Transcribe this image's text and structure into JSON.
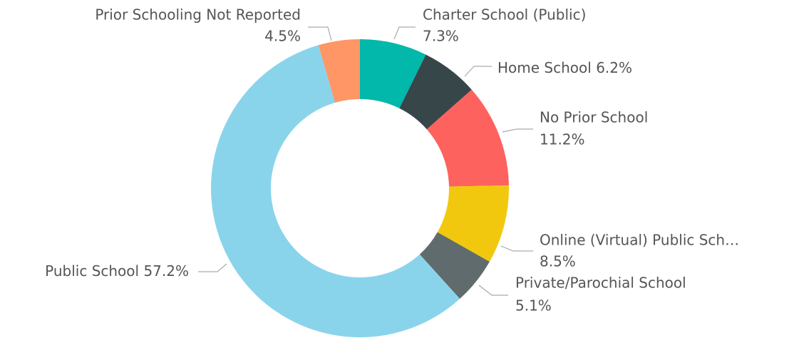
{
  "chart_data": {
    "type": "donut",
    "categories": [
      "Charter School (Public)",
      "Home School",
      "No Prior School",
      "Online (Virtual) Public Sch…",
      "Private/Parochial School",
      "Public School",
      "Prior Schooling Not Reported"
    ],
    "values": [
      7.3,
      6.2,
      11.2,
      8.5,
      5.1,
      57.2,
      4.5
    ],
    "value_labels": [
      "7.3%",
      "6.2%",
      "11.2%",
      "8.5%",
      "5.1%",
      "57.2%",
      "4.5%"
    ],
    "colors": [
      "#01b8aa",
      "#374649",
      "#fd625e",
      "#f2c80f",
      "#5f6b6d",
      "#8ad4eb",
      "#fe9666"
    ]
  }
}
